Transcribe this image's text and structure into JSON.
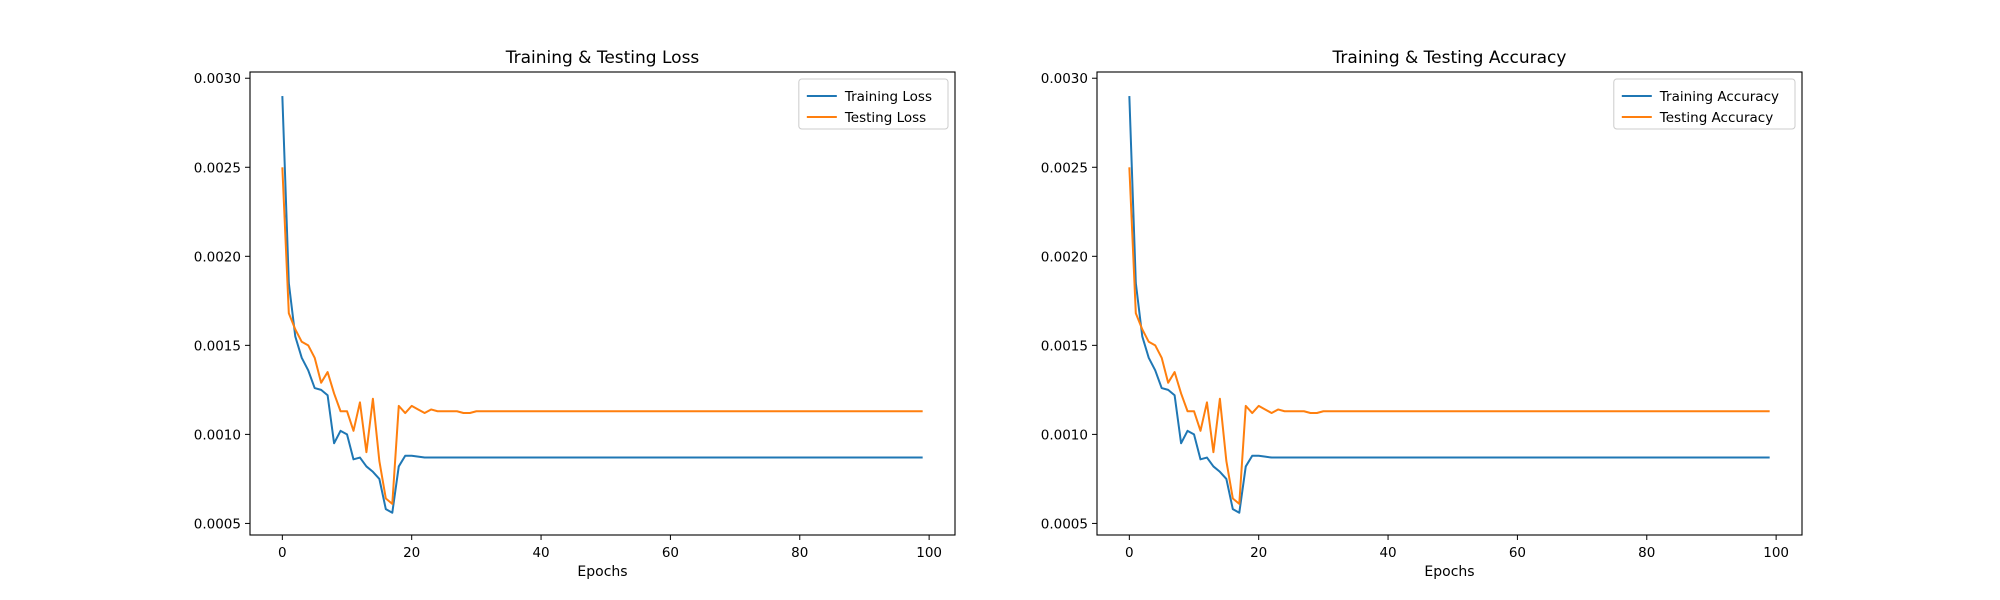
{
  "charts": [
    {
      "title": "Training & Testing Loss",
      "xlabel": "Epochs",
      "ylabel": "",
      "legend_location": "upper right",
      "series": [
        {
          "name": "Training Loss",
          "color": "#1f77b4",
          "ref": "train"
        },
        {
          "name": "Testing Loss",
          "color": "#ff7f0e",
          "ref": "test"
        }
      ]
    },
    {
      "title": "Training & Testing Accuracy",
      "xlabel": "Epochs",
      "ylabel": "",
      "legend_location": "upper right",
      "series": [
        {
          "name": "Training Accuracy",
          "color": "#1f77b4",
          "ref": "train"
        },
        {
          "name": "Testing Accuracy",
          "color": "#ff7f0e",
          "ref": "test"
        }
      ]
    }
  ],
  "chart_data": {
    "type": "line",
    "xlim": [
      -5,
      104
    ],
    "ylim": [
      0.000435,
      0.003035
    ],
    "x_ticks": [
      0,
      20,
      40,
      60,
      80,
      100
    ],
    "y_ticks": [
      0.0005,
      0.001,
      0.0015,
      0.002,
      0.0025,
      0.003
    ],
    "y_tick_labels": [
      "0.0005",
      "0.0010",
      "0.0015",
      "0.0020",
      "0.0025",
      "0.0030"
    ],
    "grid": false,
    "series_values": {
      "train": [
        0.0029,
        0.00185,
        0.00155,
        0.00143,
        0.00136,
        0.00126,
        0.00125,
        0.00122,
        0.00095,
        0.00102,
        0.001,
        0.00086,
        0.00087,
        0.00082,
        0.00079,
        0.00075,
        0.00058,
        0.00056,
        0.00082,
        0.00088,
        0.00088,
        0.000875,
        0.00087,
        0.00087,
        0.00087,
        0.00087,
        0.00087,
        0.00087,
        0.00087,
        0.00087,
        0.00087,
        0.00087,
        0.00087,
        0.00087,
        0.00087,
        0.00087,
        0.00087,
        0.00087,
        0.00087,
        0.00087,
        0.00087,
        0.00087,
        0.00087,
        0.00087,
        0.00087,
        0.00087,
        0.00087,
        0.00087,
        0.00087,
        0.00087,
        0.00087,
        0.00087,
        0.00087,
        0.00087,
        0.00087,
        0.00087,
        0.00087,
        0.00087,
        0.00087,
        0.00087,
        0.00087,
        0.00087,
        0.00087,
        0.00087,
        0.00087,
        0.00087,
        0.00087,
        0.00087,
        0.00087,
        0.00087,
        0.00087,
        0.00087,
        0.00087,
        0.00087,
        0.00087,
        0.00087,
        0.00087,
        0.00087,
        0.00087,
        0.00087,
        0.00087,
        0.00087,
        0.00087,
        0.00087,
        0.00087,
        0.00087,
        0.00087,
        0.00087,
        0.00087,
        0.00087,
        0.00087,
        0.00087,
        0.00087,
        0.00087,
        0.00087,
        0.00087,
        0.00087,
        0.00087,
        0.00087,
        0.00087
      ],
      "test": [
        0.0025,
        0.00168,
        0.00159,
        0.00152,
        0.0015,
        0.00143,
        0.00129,
        0.00135,
        0.00123,
        0.00113,
        0.00113,
        0.00102,
        0.00118,
        0.0009,
        0.0012,
        0.00085,
        0.00064,
        0.00061,
        0.00116,
        0.00112,
        0.00116,
        0.00114,
        0.00112,
        0.00114,
        0.00113,
        0.00113,
        0.00113,
        0.00113,
        0.00112,
        0.00112,
        0.00113,
        0.00113,
        0.00113,
        0.00113,
        0.00113,
        0.00113,
        0.00113,
        0.00113,
        0.00113,
        0.00113,
        0.00113,
        0.00113,
        0.00113,
        0.00113,
        0.00113,
        0.00113,
        0.00113,
        0.00113,
        0.00113,
        0.00113,
        0.00113,
        0.00113,
        0.00113,
        0.00113,
        0.00113,
        0.00113,
        0.00113,
        0.00113,
        0.00113,
        0.00113,
        0.00113,
        0.00113,
        0.00113,
        0.00113,
        0.00113,
        0.00113,
        0.00113,
        0.00113,
        0.00113,
        0.00113,
        0.00113,
        0.00113,
        0.00113,
        0.00113,
        0.00113,
        0.00113,
        0.00113,
        0.00113,
        0.00113,
        0.00113,
        0.00113,
        0.00113,
        0.00113,
        0.00113,
        0.00113,
        0.00113,
        0.00113,
        0.00113,
        0.00113,
        0.00113,
        0.00113,
        0.00113,
        0.00113,
        0.00113,
        0.00113,
        0.00113,
        0.00113,
        0.00113,
        0.00113,
        0.00113
      ]
    }
  }
}
